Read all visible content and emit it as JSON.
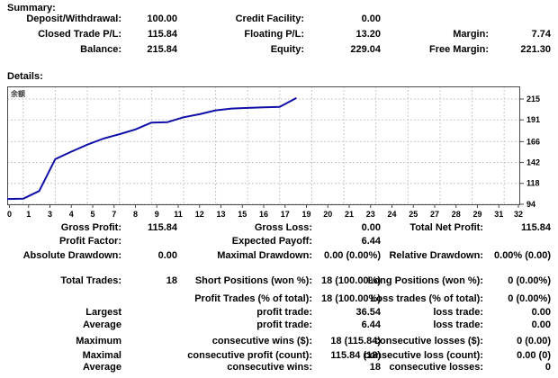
{
  "summary": {
    "title": "Summary:",
    "rows": [
      {
        "c1l": "Deposit/Withdrawal:",
        "c1v": "100.00",
        "c2l": "Credit Facility:",
        "c2v": "0.00",
        "c3l": "",
        "c3v": ""
      },
      {
        "c1l": "Closed Trade P/L:",
        "c1v": "115.84",
        "c2l": "Floating P/L:",
        "c2v": "13.20",
        "c3l": "Margin:",
        "c3v": "7.74"
      },
      {
        "c1l": "Balance:",
        "c1v": "215.84",
        "c2l": "Equity:",
        "c2v": "229.04",
        "c3l": "Free Margin:",
        "c3v": "221.30"
      }
    ]
  },
  "details": {
    "title": "Details:"
  },
  "chart_data": {
    "type": "line",
    "title": "余额",
    "series": [
      {
        "name": "余额",
        "x": [
          0,
          1,
          2,
          3,
          4,
          5,
          6,
          7,
          8,
          9,
          10,
          11,
          12,
          13,
          14,
          15,
          16,
          17,
          18
        ],
        "values": [
          100.0,
          100.3,
          109.3,
          145.84,
          154.5,
          162.5,
          169.5,
          174.5,
          180.0,
          187.9,
          188.4,
          194.0,
          197.5,
          202.0,
          204.0,
          204.8,
          205.4,
          205.9,
          215.84
        ],
        "color": "#0f0fa8"
      }
    ],
    "x_tick_labels": [
      "0",
      "1",
      "3",
      "4",
      "5",
      "7",
      "8",
      "9",
      "11",
      "12",
      "13",
      "15",
      "16",
      "17",
      "19",
      "20",
      "21",
      "23",
      "24",
      "25",
      "27",
      "28",
      "29",
      "31",
      "32"
    ],
    "y_ticks": [
      94,
      118,
      142,
      166,
      191,
      215
    ],
    "xlim": [
      0,
      32
    ],
    "ylim": [
      92.9,
      229.5
    ],
    "grid": "dashed",
    "grid_color": "#c9c9c9",
    "border_color": "#4a4a4a",
    "tick_color": "#000000",
    "legend_position": "top-left"
  },
  "stats": {
    "block1": {
      "rows": [
        {
          "c1l": "Gross Profit:",
          "c1v": "115.84",
          "c2l": "Gross Loss:",
          "c2v": "0.00",
          "c3l": "Total Net Profit:",
          "c3v": "115.84"
        },
        {
          "c1l": "Profit Factor:",
          "c1v": "",
          "c2l": "Expected Payoff:",
          "c2v": "6.44",
          "c3l": "",
          "c3v": ""
        },
        {
          "c1l": "Absolute Drawdown:",
          "c1v": "0.00",
          "c2l": "Maximal Drawdown:",
          "c2v": "0.00 (0.00%)",
          "c3l": "Relative Drawdown:",
          "c3v": "0.00% (0.00)"
        }
      ]
    },
    "block2": {
      "rows": [
        {
          "c1l": "Total Trades:",
          "c1v": "18",
          "c2l": "Short Positions (won %):",
          "c2v": "18 (100.00%)",
          "c3l": "Long Positions (won %):",
          "c3v": "0 (0.00%)"
        },
        {
          "c1l": "",
          "c1v": "",
          "c2l": "Profit Trades (% of total):",
          "c2v": "18 (100.00%)",
          "c3l": "Loss trades (% of total):",
          "c3v": "0 (0.00%)"
        },
        {
          "c1l": "Largest",
          "c1v": "",
          "c2l": "profit trade:",
          "c2v": "36.54",
          "c3l": "loss trade:",
          "c3v": "0.00"
        },
        {
          "c1l": "Average",
          "c1v": "",
          "c2l": "profit trade:",
          "c2v": "6.44",
          "c3l": "loss trade:",
          "c3v": "0.00"
        },
        {
          "c1l": "Maximum",
          "c1v": "",
          "c2l": "consecutive wins ($):",
          "c2v": "18 (115.84)",
          "c3l": "consecutive losses ($):",
          "c3v": "0 (0.00)"
        },
        {
          "c1l": "Maximal",
          "c1v": "",
          "c2l": "consecutive profit (count):",
          "c2v": "115.84 (18)",
          "c3l": "consecutive loss (count):",
          "c3v": "0.00 (0)"
        },
        {
          "c1l": "Average",
          "c1v": "",
          "c2l": "consecutive wins:",
          "c2v": "18",
          "c3l": "consecutive losses:",
          "c3v": "0"
        }
      ]
    }
  }
}
